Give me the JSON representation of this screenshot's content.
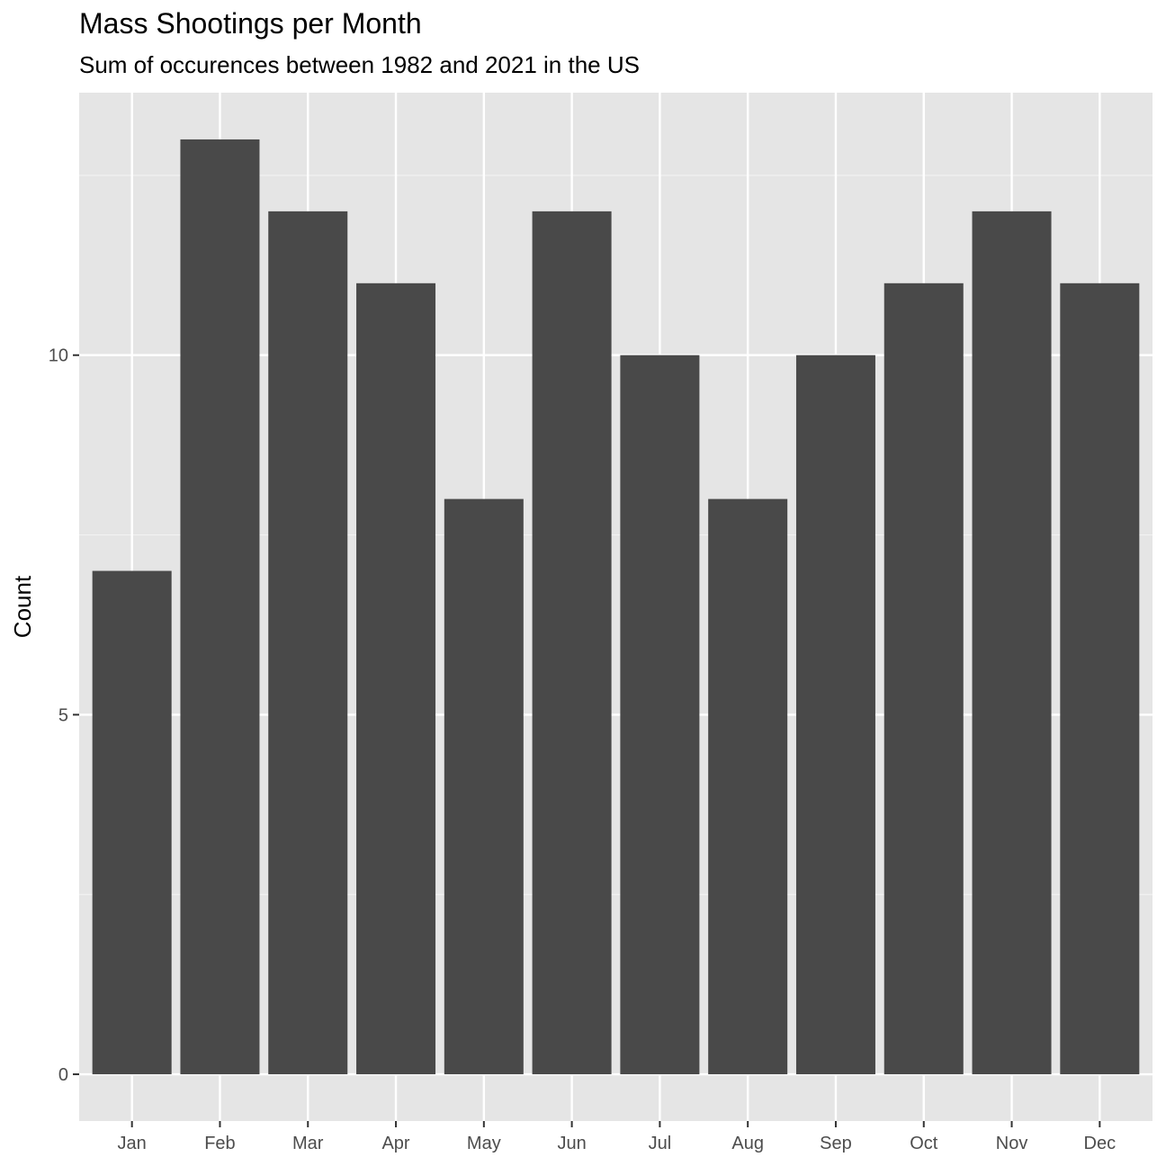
{
  "chart_data": {
    "type": "bar",
    "title": "Mass Shootings per Month",
    "subtitle": "Sum of occurences between 1982 and 2021 in the US",
    "xlabel": "",
    "ylabel": "Count",
    "categories": [
      "Jan",
      "Feb",
      "Mar",
      "Apr",
      "May",
      "Jun",
      "Jul",
      "Aug",
      "Sep",
      "Oct",
      "Nov",
      "Dec"
    ],
    "values": [
      7,
      13,
      12,
      11,
      8,
      12,
      10,
      8,
      10,
      11,
      12,
      11
    ],
    "yticks": [
      0,
      5,
      10
    ],
    "ylim": [
      -0.65,
      13.65
    ],
    "grid": true,
    "legend": "none",
    "colors": {
      "bar": "#494949",
      "panel": "#e5e5e5",
      "grid_major": "#ffffff",
      "grid_minor": "#f2f2f2",
      "tick_label": "#4d4d4d",
      "axis_title": "#000000"
    }
  }
}
